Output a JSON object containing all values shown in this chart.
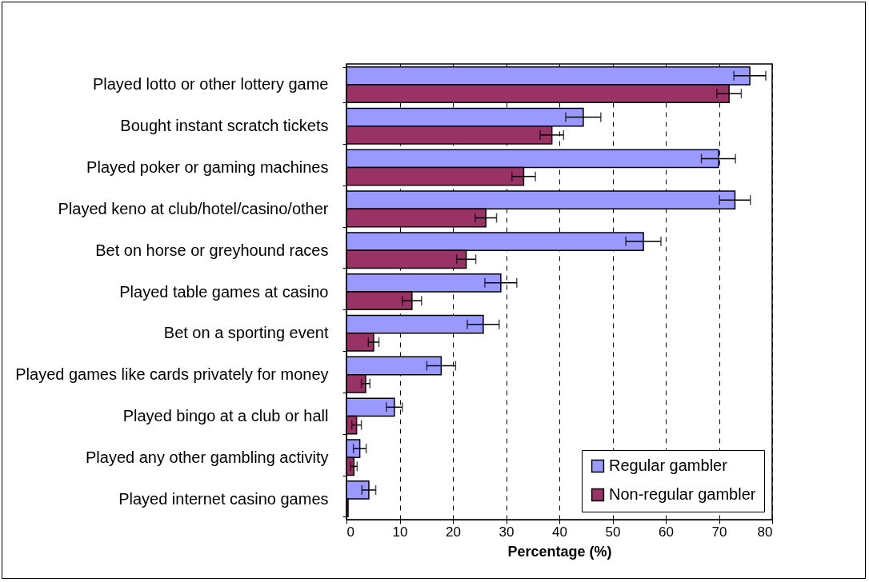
{
  "chart_data": {
    "type": "bar",
    "orientation": "horizontal",
    "xlabel": "Percentage (%)",
    "categories": [
      "Played lotto or other lottery game",
      "Bought instant scratch tickets",
      "Played poker or gaming machines",
      "Played keno at club/hotel/casino/other",
      "Bet on horse or greyhound races",
      "Played table games at casino",
      "Bet on a sporting event",
      "Played games like cards privately for money",
      "Played bingo at a club or hall",
      "Played any other gambling activity",
      "Played internet casino games"
    ],
    "series": [
      {
        "name": "Regular gambler",
        "color": "#9999ff",
        "values": [
          75.8,
          44.5,
          69.9,
          73.0,
          55.8,
          29.0,
          25.7,
          17.8,
          9.0,
          2.5,
          4.2
        ],
        "errors": [
          3.0,
          3.3,
          3.2,
          2.9,
          3.3,
          3.0,
          3.0,
          2.7,
          1.5,
          1.2,
          1.3
        ]
      },
      {
        "name": "Non-regular gambler",
        "color": "#993366",
        "values": [
          71.9,
          38.6,
          33.3,
          26.2,
          22.5,
          12.3,
          5.1,
          3.6,
          1.9,
          1.4,
          0.3
        ],
        "errors": [
          2.3,
          2.2,
          2.2,
          2.0,
          1.8,
          1.8,
          1.0,
          0.8,
          0.9,
          0.6,
          null
        ]
      }
    ],
    "xlim": [
      0,
      80
    ],
    "xticks": [
      0,
      10,
      20,
      30,
      40,
      50,
      60,
      70,
      80
    ],
    "grid": "x",
    "legend": "bottom right"
  }
}
